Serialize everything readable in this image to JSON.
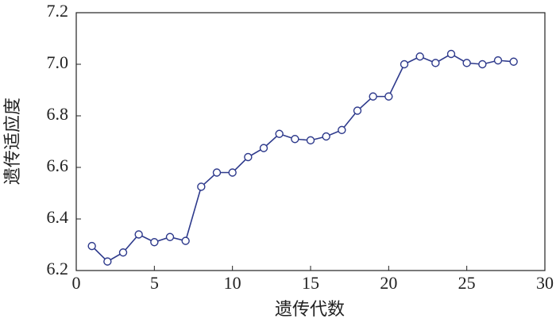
{
  "chart_data": {
    "type": "line",
    "xlabel": "遗传代数",
    "ylabel": "遗传适应度",
    "x": [
      1,
      2,
      3,
      4,
      5,
      6,
      7,
      8,
      9,
      10,
      11,
      12,
      13,
      14,
      15,
      16,
      17,
      18,
      19,
      20,
      21,
      22,
      23,
      24,
      25,
      26,
      27,
      28
    ],
    "series": [
      {
        "color": "#2e3a8c",
        "values": [
          6.295,
          6.235,
          6.27,
          6.34,
          6.31,
          6.33,
          6.315,
          6.525,
          6.58,
          6.58,
          6.64,
          6.675,
          6.73,
          6.71,
          6.705,
          6.72,
          6.745,
          6.82,
          6.875,
          6.875,
          7.0,
          7.03,
          7.005,
          7.04,
          7.005,
          7.0,
          7.015,
          7.01
        ]
      }
    ],
    "xlim": [
      0,
      30
    ],
    "xticks": [
      0,
      5,
      10,
      15,
      20,
      25,
      30
    ],
    "ylim": [
      6.2,
      7.2
    ],
    "yticks": [
      6.2,
      6.4,
      6.6,
      6.8,
      {
        "value": 7,
        "label": "7.0"
      },
      7.2
    ]
  }
}
